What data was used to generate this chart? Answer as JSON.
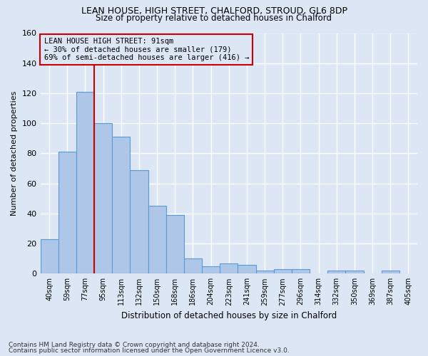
{
  "title": "LEAN HOUSE, HIGH STREET, CHALFORD, STROUD, GL6 8DP",
  "subtitle": "Size of property relative to detached houses in Chalford",
  "xlabel": "Distribution of detached houses by size in Chalford",
  "ylabel": "Number of detached properties",
  "bar_labels": [
    "40sqm",
    "59sqm",
    "77sqm",
    "95sqm",
    "113sqm",
    "132sqm",
    "150sqm",
    "168sqm",
    "186sqm",
    "204sqm",
    "223sqm",
    "241sqm",
    "259sqm",
    "277sqm",
    "296sqm",
    "314sqm",
    "332sqm",
    "350sqm",
    "369sqm",
    "387sqm",
    "405sqm"
  ],
  "bar_values": [
    23,
    81,
    121,
    100,
    91,
    69,
    45,
    39,
    10,
    5,
    7,
    6,
    2,
    3,
    3,
    0,
    2,
    2,
    0,
    2,
    0
  ],
  "bar_color": "#aec6e8",
  "bar_edge_color": "#5b9bd5",
  "vline_x_idx": 2,
  "vline_color": "#cc0000",
  "annotation_title": "LEAN HOUSE HIGH STREET: 91sqm",
  "annotation_line1": "← 30% of detached houses are smaller (179)",
  "annotation_line2": "69% of semi-detached houses are larger (416) →",
  "annotation_box_color": "#cc0000",
  "ylim": [
    0,
    160
  ],
  "yticks": [
    0,
    20,
    40,
    60,
    80,
    100,
    120,
    140,
    160
  ],
  "footer1": "Contains HM Land Registry data © Crown copyright and database right 2024.",
  "footer2": "Contains public sector information licensed under the Open Government Licence v3.0.",
  "background_color": "#dce6f5",
  "grid_color": "#ffffff"
}
